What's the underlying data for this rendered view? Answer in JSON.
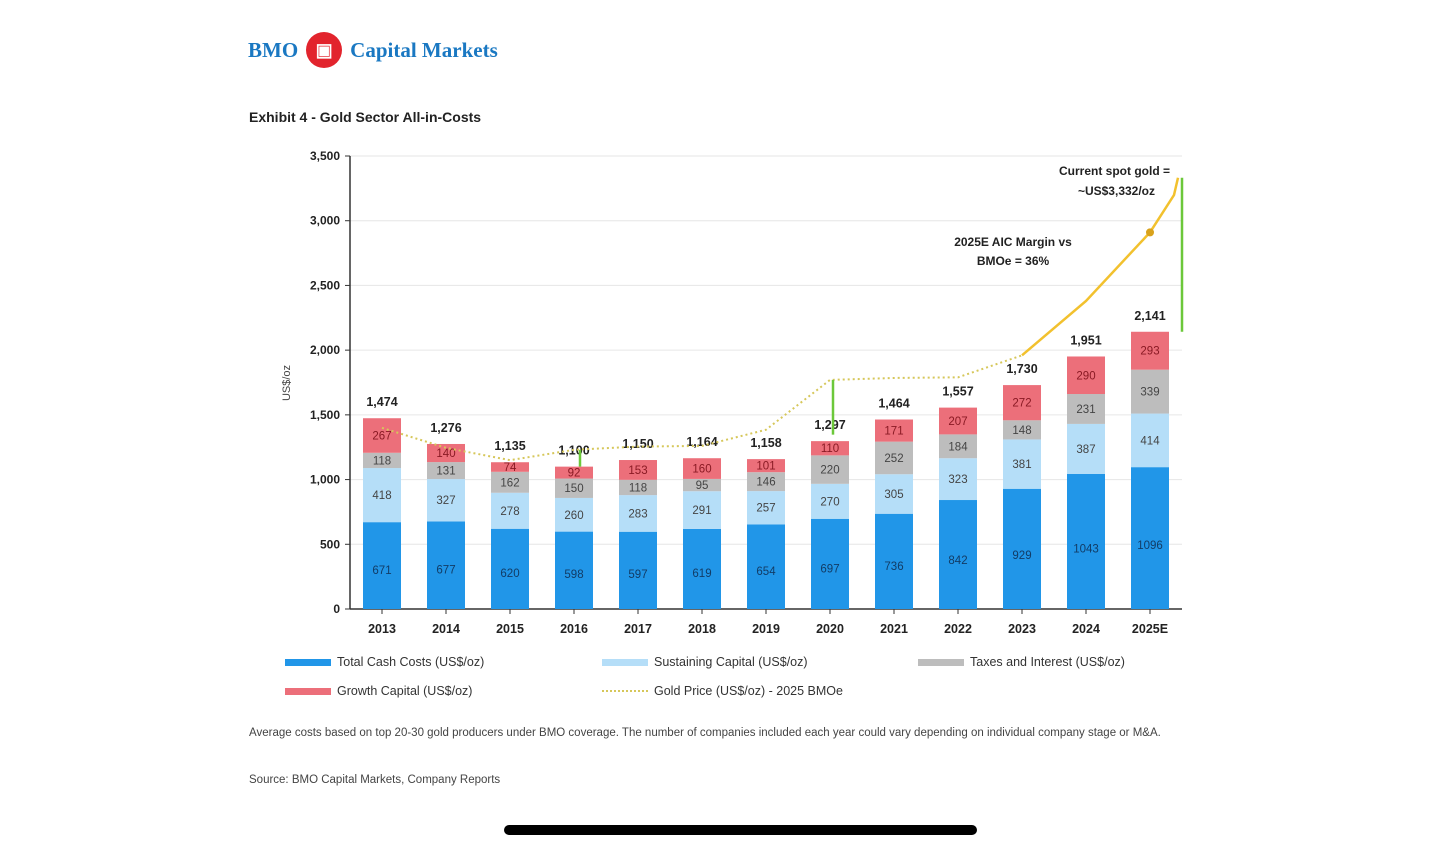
{
  "header": {
    "brand_left": "BMO",
    "brand_right": "Capital Markets",
    "exhibit_title": "Exhibit 4 - Gold Sector All-in-Costs"
  },
  "colors": {
    "cash": "#2196e8",
    "sustaining": "#b5def8",
    "taxes": "#bdbdbd",
    "growth": "#ec6f7a",
    "gold": "#f2c12e",
    "margin": "#6cc83a"
  },
  "chart_data": {
    "type": "bar",
    "stacked": true,
    "title": "Exhibit 4 - Gold Sector All-in-Costs",
    "ylabel": "US$/oz",
    "ylim": [
      0,
      3500
    ],
    "yticks": [
      0,
      500,
      1000,
      1500,
      2000,
      2500,
      3000,
      3500
    ],
    "ytick_labels": [
      "0",
      "500",
      "1,000",
      "1,500",
      "2,000",
      "2,500",
      "3,000",
      "3,500"
    ],
    "grid": true,
    "legend_placement": "bottom",
    "categories": [
      "2013",
      "2014",
      "2015",
      "2016",
      "2017",
      "2018",
      "2019",
      "2020",
      "2021",
      "2022",
      "2023",
      "2024",
      "2025E"
    ],
    "series": [
      {
        "name": "Total Cash Costs (US$/oz)",
        "values": [
          671,
          677,
          620,
          598,
          597,
          619,
          654,
          697,
          736,
          842,
          929,
          1043,
          1096
        ]
      },
      {
        "name": "Sustaining Capital (US$/oz)",
        "values": [
          418,
          327,
          278,
          260,
          283,
          291,
          257,
          270,
          305,
          323,
          381,
          387,
          414
        ]
      },
      {
        "name": "Taxes and Interest (US$/oz)",
        "values": [
          118,
          131,
          162,
          150,
          118,
          95,
          146,
          220,
          252,
          184,
          148,
          231,
          339
        ]
      },
      {
        "name": "Growth Capital (US$/oz)",
        "values": [
          267,
          140,
          74,
          92,
          153,
          160,
          101,
          110,
          171,
          207,
          272,
          290,
          293
        ]
      }
    ],
    "totals": [
      "1,474",
      "1,276",
      "1,135",
      "1,100",
      "1,150",
      "1,164",
      "1,158",
      "1,297",
      "1,464",
      "1,557",
      "1,730",
      "1,951",
      "2,141"
    ],
    "line_series": {
      "name": "Gold Price (US$/oz) - 2025 BMOe",
      "values": [
        1400,
        1245,
        1150,
        1230,
        1255,
        1260,
        1385,
        1770,
        1785,
        1790,
        1960,
        2380,
        2910
      ],
      "spot_value": 3332
    },
    "annotations": {
      "spot": "Current spot gold = ~US$3,332/oz",
      "margin": "2025E AIC Margin vs BMOe = 36%"
    }
  },
  "footer": {
    "note": "Average costs based on top 20-30 gold producers under BMO coverage. The number of companies included each year could vary depending on individual company stage or M&A.",
    "source": "Source: BMO Capital Markets, Company Reports"
  }
}
